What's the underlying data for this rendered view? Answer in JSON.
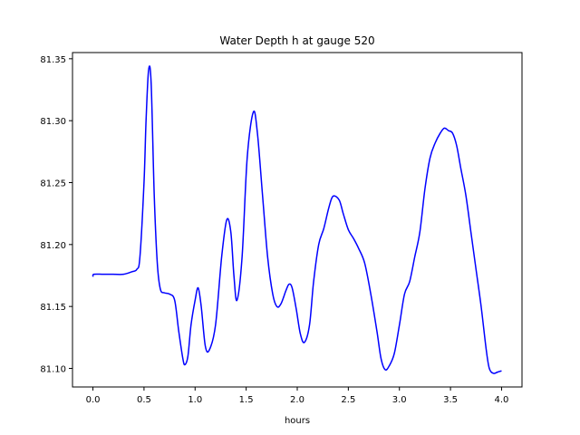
{
  "chart_data": {
    "type": "line",
    "title": "Water Depth h at gauge 520",
    "xlabel": "hours",
    "ylabel": "",
    "xlim": [
      -0.2,
      4.2
    ],
    "ylim": [
      81.085,
      81.355
    ],
    "xticks": [
      0.0,
      0.5,
      1.0,
      1.5,
      2.0,
      2.5,
      3.0,
      3.5,
      4.0
    ],
    "xtick_labels": [
      "0.0",
      "0.5",
      "1.0",
      "1.5",
      "2.0",
      "2.5",
      "3.0",
      "3.5",
      "4.0"
    ],
    "yticks": [
      81.1,
      81.15,
      81.2,
      81.25,
      81.3,
      81.35
    ],
    "ytick_labels": [
      "81.10",
      "81.15",
      "81.20",
      "81.25",
      "81.30",
      "81.35"
    ],
    "grid": false,
    "series": [
      {
        "color": "#0000ff",
        "x": [
          0.0,
          0.01,
          0.1,
          0.2,
          0.3,
          0.38,
          0.43,
          0.46,
          0.5,
          0.52,
          0.545,
          0.57,
          0.6,
          0.63,
          0.66,
          0.7,
          0.75,
          0.8,
          0.84,
          0.88,
          0.9,
          0.93,
          0.96,
          1.0,
          1.03,
          1.06,
          1.1,
          1.14,
          1.2,
          1.26,
          1.31,
          1.35,
          1.38,
          1.41,
          1.46,
          1.51,
          1.57,
          1.61,
          1.66,
          1.71,
          1.76,
          1.8,
          1.84,
          1.89,
          1.92,
          1.95,
          1.99,
          2.03,
          2.07,
          2.12,
          2.16,
          2.21,
          2.26,
          2.31,
          2.35,
          2.41,
          2.45,
          2.5,
          2.55,
          2.6,
          2.66,
          2.72,
          2.78,
          2.82,
          2.86,
          2.9,
          2.95,
          3.0,
          3.05,
          3.1,
          3.15,
          3.2,
          3.25,
          3.3,
          3.35,
          3.4,
          3.44,
          3.48,
          3.52,
          3.56,
          3.6,
          3.65,
          3.7,
          3.75,
          3.8,
          3.85,
          3.88,
          3.92,
          3.96,
          4.0
        ],
        "values": [
          81.174,
          81.176,
          81.176,
          81.176,
          81.176,
          81.178,
          81.18,
          81.19,
          81.25,
          81.3,
          81.341,
          81.33,
          81.24,
          81.185,
          81.164,
          81.161,
          81.16,
          81.155,
          81.13,
          81.108,
          81.103,
          81.11,
          81.135,
          81.155,
          81.165,
          81.15,
          81.118,
          81.115,
          81.135,
          81.19,
          81.22,
          81.21,
          81.175,
          81.155,
          81.19,
          81.27,
          81.307,
          81.29,
          81.24,
          81.19,
          81.16,
          81.15,
          81.152,
          81.163,
          81.168,
          81.165,
          81.148,
          81.128,
          81.121,
          81.135,
          81.17,
          81.2,
          81.213,
          81.23,
          81.239,
          81.236,
          81.225,
          81.212,
          81.205,
          81.197,
          81.185,
          81.16,
          81.13,
          81.108,
          81.099,
          81.102,
          81.112,
          81.135,
          81.16,
          81.17,
          81.19,
          81.21,
          81.245,
          81.27,
          81.282,
          81.29,
          81.294,
          81.292,
          81.29,
          81.28,
          81.262,
          81.24,
          81.21,
          81.18,
          81.15,
          81.115,
          81.1,
          81.096,
          81.097,
          81.098
        ]
      }
    ]
  }
}
